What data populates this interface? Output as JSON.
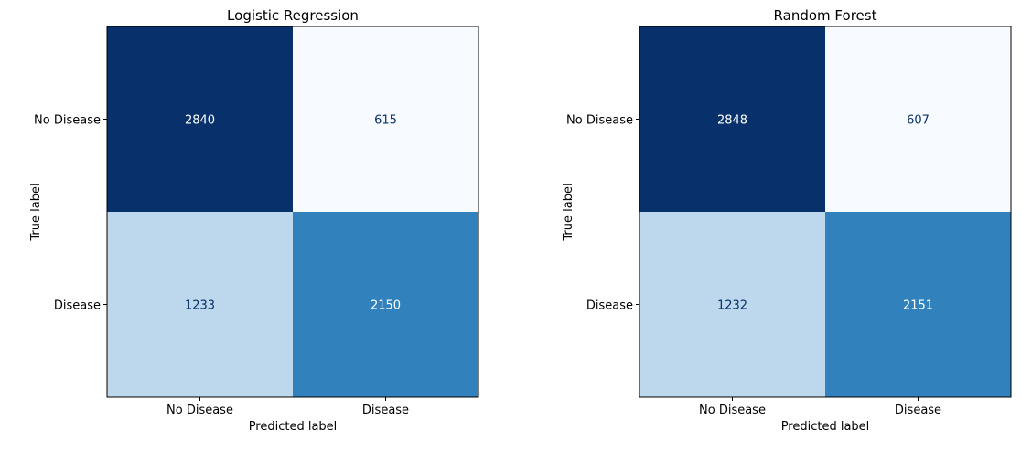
{
  "colors": {
    "dark": "#08306b",
    "light": "#bdd7eb",
    "mid": "#3080bd",
    "lightest": "#f7fbff",
    "text_on_dark": "#ffffff",
    "text_on_light": "#08306b",
    "axis": "#000000"
  },
  "chart_data": [
    {
      "type": "heatmap",
      "title": "Logistic Regression",
      "xlabel": "Predicted label",
      "ylabel": "True label",
      "x_categories": [
        "No Disease",
        "Disease"
      ],
      "y_categories": [
        "No Disease",
        "Disease"
      ],
      "values": [
        [
          2840,
          615
        ],
        [
          1233,
          2150
        ]
      ],
      "colormap": "Blues",
      "colorbar": false,
      "grid": false
    },
    {
      "type": "heatmap",
      "title": "Random Forest",
      "xlabel": "Predicted label",
      "ylabel": "True label",
      "x_categories": [
        "No Disease",
        "Disease"
      ],
      "y_categories": [
        "No Disease",
        "Disease"
      ],
      "values": [
        [
          2848,
          607
        ],
        [
          1232,
          2151
        ]
      ],
      "colormap": "Blues",
      "colorbar": false,
      "grid": false
    }
  ]
}
